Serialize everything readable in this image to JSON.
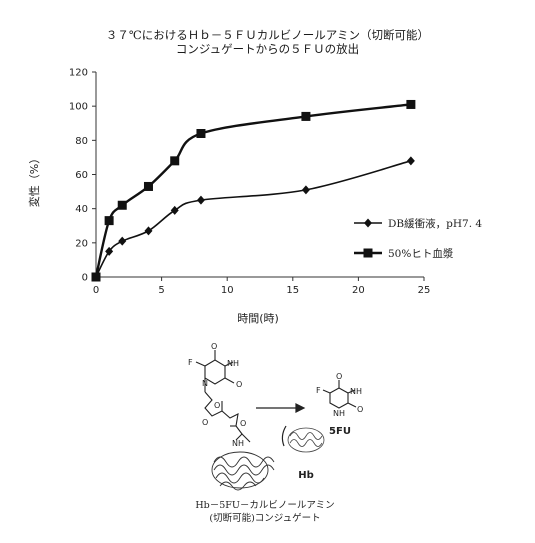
{
  "chart_data": {
    "type": "line",
    "title_line1": "３７℃におけるＨｂ－５ＦＵカルビノールアミン（切断可能）",
    "title_line2": "コンジュゲートからの５ＦＵの放出",
    "xlabel": "時間(時)",
    "ylabel": "変性（%）",
    "xlim": [
      0,
      25
    ],
    "ylim": [
      0,
      120
    ],
    "xticks": [
      0,
      5,
      10,
      15,
      20,
      25
    ],
    "yticks": [
      0,
      20,
      40,
      60,
      80,
      100,
      120
    ],
    "grid": false,
    "legend_position": "right",
    "series": [
      {
        "name": "DB緩衝液，pH7. 4",
        "marker": "diamond",
        "color": "#111111",
        "x": [
          0,
          1,
          2,
          4,
          6,
          8,
          16,
          24
        ],
        "y": [
          0,
          15,
          21,
          27,
          39,
          45,
          51,
          68
        ]
      },
      {
        "name": "50%ヒト血漿",
        "marker": "square",
        "color": "#111111",
        "x": [
          0,
          1,
          2,
          4,
          6,
          8,
          16,
          24
        ],
        "y": [
          0,
          33,
          42,
          53,
          68,
          84,
          94,
          101
        ]
      }
    ]
  },
  "scheme": {
    "atom_F": "F",
    "atom_O": "O",
    "atom_N": "N",
    "atom_H": "H",
    "label_5fu": "5FU",
    "label_hb": "Hb",
    "caption_line1": "Hb－5FU－カルビノールアミン",
    "caption_line2": "(切断可能)コンジュゲート"
  }
}
